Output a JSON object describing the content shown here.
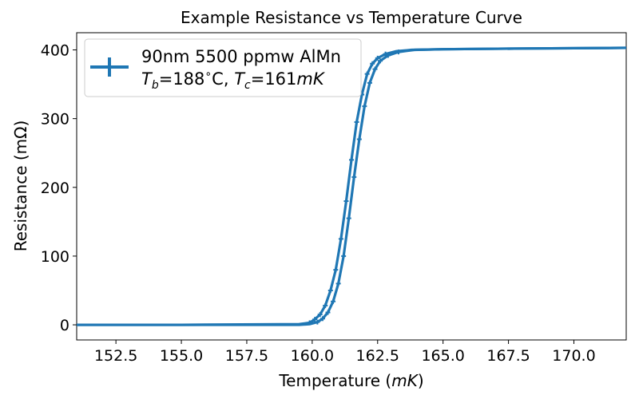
{
  "chart_data": {
    "type": "line",
    "title": "Example Resistance vs Temperature Curve",
    "xlabel_text": "Temperature (",
    "xlabel_unit": "mK",
    "xlabel_close": ")",
    "ylabel": "Resistance (mΩ)",
    "xlim": [
      151.0,
      172.0
    ],
    "ylim": [
      -22,
      425
    ],
    "x_ticks": [
      152.5,
      155.0,
      157.5,
      160.0,
      162.5,
      165.0,
      167.5,
      170.0
    ],
    "x_tick_labels": [
      "152.5",
      "155.0",
      "157.5",
      "160.0",
      "162.5",
      "165.0",
      "167.5",
      "170.0"
    ],
    "y_ticks": [
      0,
      100,
      200,
      300,
      400
    ],
    "y_tick_labels": [
      "0",
      "100",
      "200",
      "300",
      "400"
    ],
    "grid": false,
    "legend_position": "top-left",
    "series": [
      {
        "name": "90nm 5500 ppmw AlMn",
        "color": "#1f77b4",
        "error_bars": true,
        "branches": [
          {
            "x": [
              151.0,
              155.0,
              159.5,
              159.9,
              160.1,
              160.3,
              160.5,
              160.7,
              160.9,
              161.1,
              161.3,
              161.5,
              161.7,
              161.9,
              162.1,
              162.3,
              162.5,
              162.8,
              163.2,
              163.8,
              165.0,
              168.0,
              172.0
            ],
            "y": [
              0,
              0,
              1,
              3,
              8,
              15,
              28,
              50,
              80,
              125,
              180,
              240,
              295,
              335,
              365,
              380,
              388,
              394,
              398,
              400,
              401,
              402,
              403
            ]
          },
          {
            "x": [
              151.0,
              155.0,
              159.5,
              159.9,
              160.2,
              160.4,
              160.6,
              160.8,
              161.0,
              161.2,
              161.4,
              161.6,
              161.8,
              162.0,
              162.2,
              162.4,
              162.6,
              162.9,
              163.3,
              163.9,
              165.0,
              168.0,
              172.0
            ],
            "y": [
              0,
              0,
              0,
              1,
              4,
              9,
              18,
              34,
              60,
              100,
              155,
              215,
              270,
              318,
              352,
              372,
              384,
              392,
              397,
              400,
              401,
              402,
              403
            ]
          }
        ]
      }
    ],
    "legend": {
      "line1": "90nm 5500 ppmw AlMn",
      "tb_symbol": "T",
      "tb_sub": "b",
      "tb_value": "=188",
      "tb_degree": "∘",
      "tb_unit": "C, ",
      "tc_symbol": "T",
      "tc_sub": "c",
      "tc_value": "=161",
      "tc_unit": "mK"
    }
  }
}
